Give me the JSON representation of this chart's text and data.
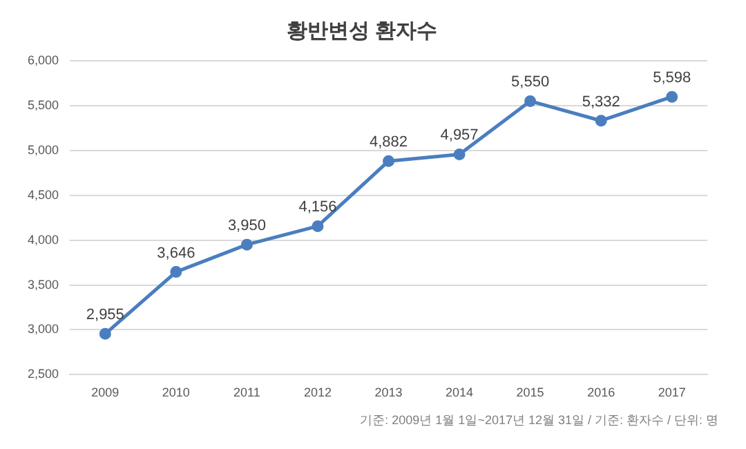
{
  "chart_data": {
    "type": "line",
    "title": "황반변성 환자수",
    "categories": [
      "2009",
      "2010",
      "2011",
      "2012",
      "2013",
      "2014",
      "2015",
      "2016",
      "2017"
    ],
    "series": [
      {
        "color": "#4a7ebf",
        "values": [
          2955,
          3646,
          3950,
          4156,
          4882,
          4957,
          5550,
          5332,
          5598
        ],
        "value_labels": [
          "2,955",
          "3,646",
          "3,950",
          "4,156",
          "4,882",
          "4,957",
          "5,550",
          "5,332",
          "5,598"
        ]
      }
    ],
    "ylim": [
      2500,
      6000
    ],
    "yticks": [
      {
        "value": 2500,
        "label": "2,500"
      },
      {
        "value": 3000,
        "label": "3,000"
      },
      {
        "value": 3500,
        "label": "3,500"
      },
      {
        "value": 4000,
        "label": "4,000"
      },
      {
        "value": 4500,
        "label": "4,500"
      },
      {
        "value": 5000,
        "label": "5,000"
      },
      {
        "value": 5500,
        "label": "5,500"
      },
      {
        "value": 6000,
        "label": "6,000"
      }
    ],
    "grid": "y",
    "legend": false,
    "marker": "circle",
    "line_style": "solid",
    "annotations": [
      "기준: 2009년 1월 1일~2017년 12월 31일 / 기준: 환자수 / 단위: 명"
    ]
  }
}
